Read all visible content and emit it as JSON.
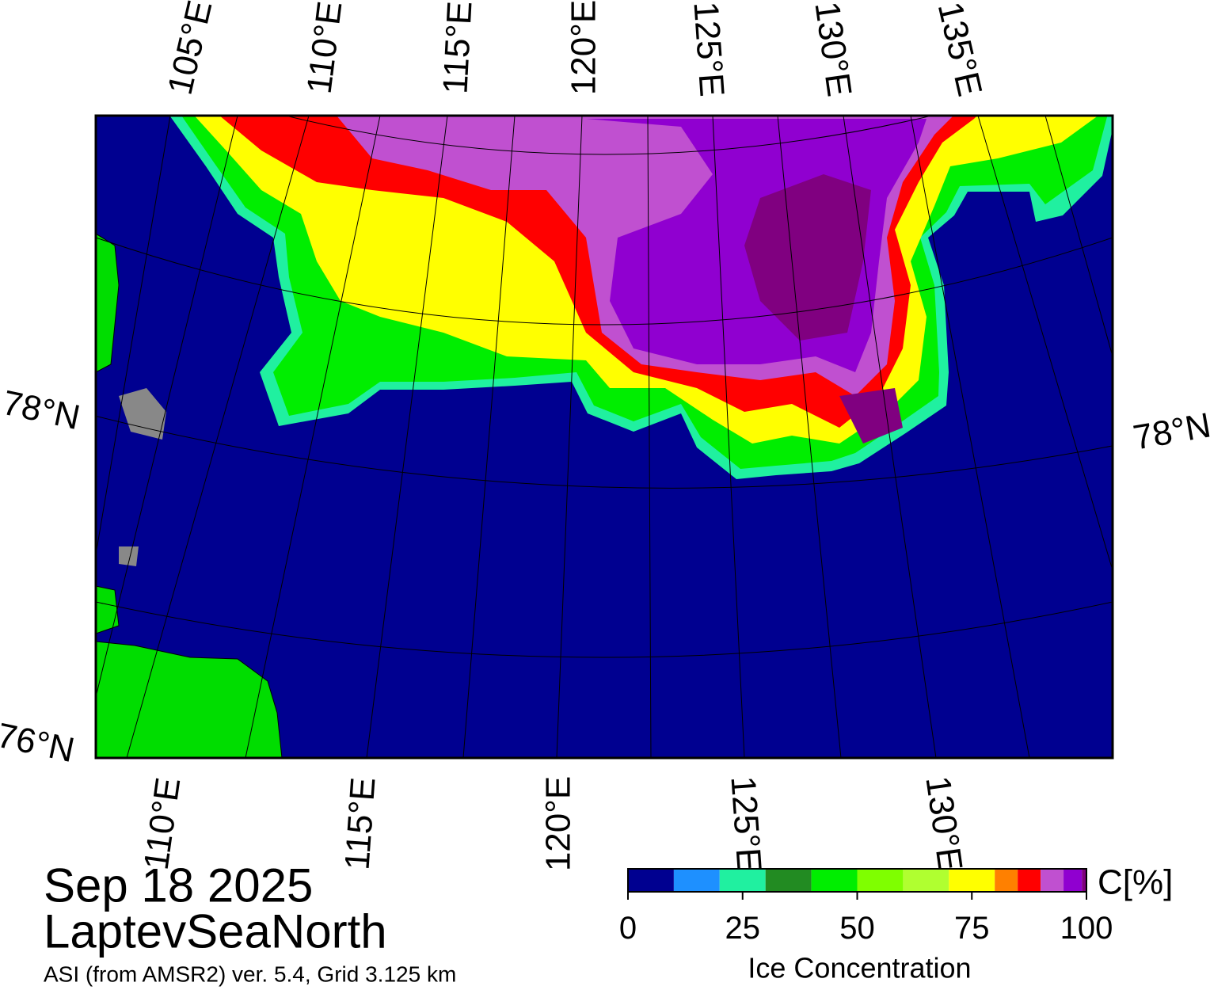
{
  "map": {
    "top_longitude_labels": [
      "105°E",
      "110°E",
      "115°E",
      "120°E",
      "125°E",
      "130°E",
      "135°E"
    ],
    "bottom_longitude_labels": [
      "110°E",
      "115°E",
      "120°E",
      "125°E",
      "130°E"
    ],
    "left_latitude_labels": [
      "78°N",
      "76°N"
    ],
    "right_latitude_labels": [
      "78°N"
    ]
  },
  "date": "Sep 18 2025",
  "region": "LaptevSeaNorth",
  "source": "ASI (from AMSR2) ver. 5.4,  Grid 3.125 km",
  "colorbar": {
    "title": "Ice Concentration",
    "unit_label": "C[%]",
    "range": [
      0,
      100
    ],
    "ticks": [
      0,
      25,
      50,
      75,
      100
    ],
    "bounds": [
      0,
      10,
      20,
      30,
      40,
      50,
      60,
      70,
      80,
      85,
      90,
      95,
      99,
      100
    ],
    "colors": [
      "#000090",
      "#1e90ff",
      "#20f0a0",
      "#228b22",
      "#00ee00",
      "#7fff00",
      "#b0ff30",
      "#ffff00",
      "#ff8000",
      "#ff0000",
      "#c050d0",
      "#9000d0",
      "#800080"
    ]
  }
}
